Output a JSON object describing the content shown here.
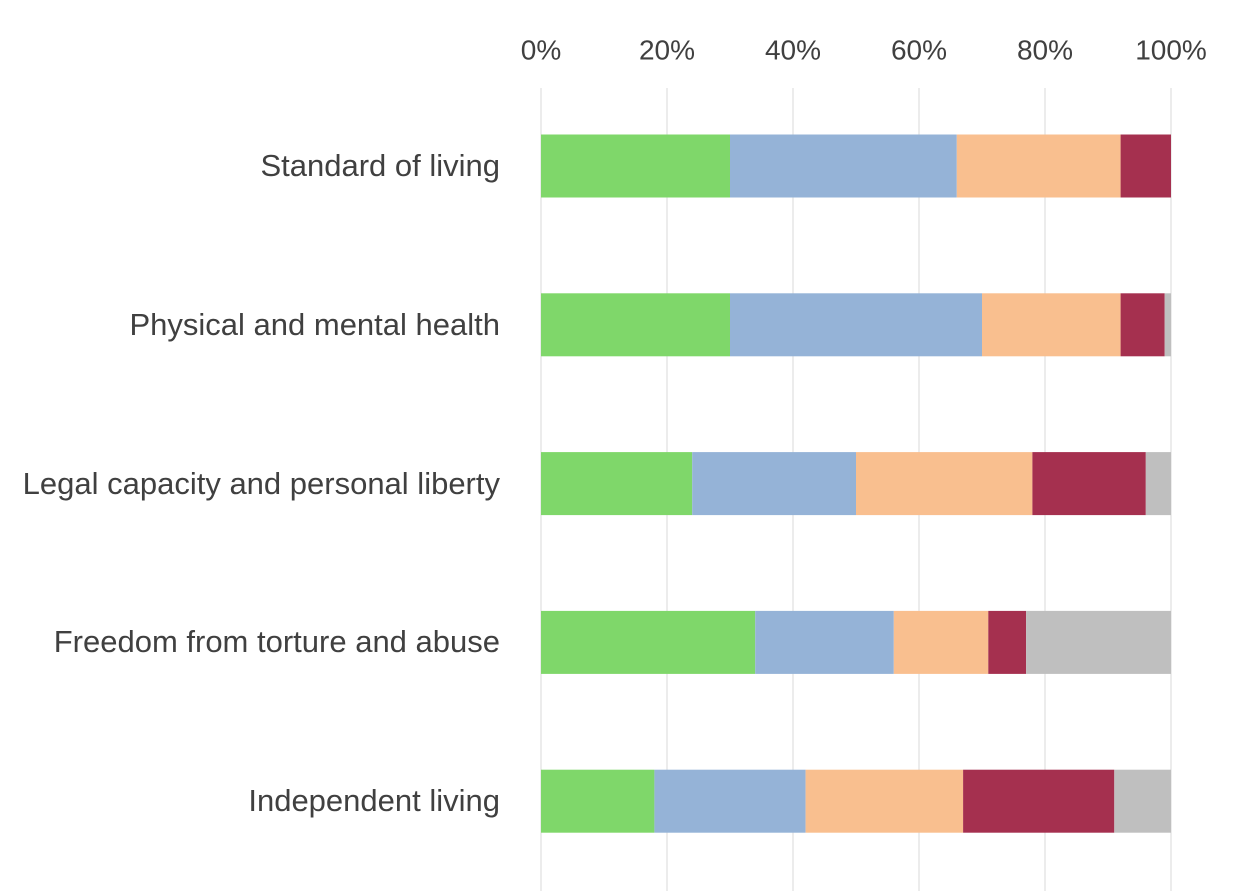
{
  "chart_data": {
    "type": "stacked_bar_horizontal",
    "categories": [
      "Standard of living",
      "Physical and mental health",
      "Legal capacity and personal liberty",
      "Freedom from torture and abuse",
      "Independent living"
    ],
    "series": [
      {
        "color": "#7fd76a",
        "values": [
          30,
          30,
          24,
          34,
          18
        ]
      },
      {
        "color": "#95b3d7",
        "values": [
          36,
          40,
          26,
          22,
          24
        ]
      },
      {
        "color": "#f9bf8f",
        "values": [
          26,
          22,
          28,
          15,
          25
        ]
      },
      {
        "color": "#a5304f",
        "values": [
          8,
          7,
          18,
          6,
          24
        ]
      },
      {
        "color": "#bfbfbf",
        "values": [
          0,
          1,
          4,
          23,
          9
        ]
      }
    ],
    "xlim": [
      0,
      100
    ],
    "xticks": [
      {
        "value": 0,
        "label": "0%"
      },
      {
        "value": 20,
        "label": "20%"
      },
      {
        "value": 40,
        "label": "40%"
      },
      {
        "value": 60,
        "label": "60%"
      },
      {
        "value": 80,
        "label": "80%"
      },
      {
        "value": 100,
        "label": "100%"
      }
    ],
    "grid": true
  }
}
